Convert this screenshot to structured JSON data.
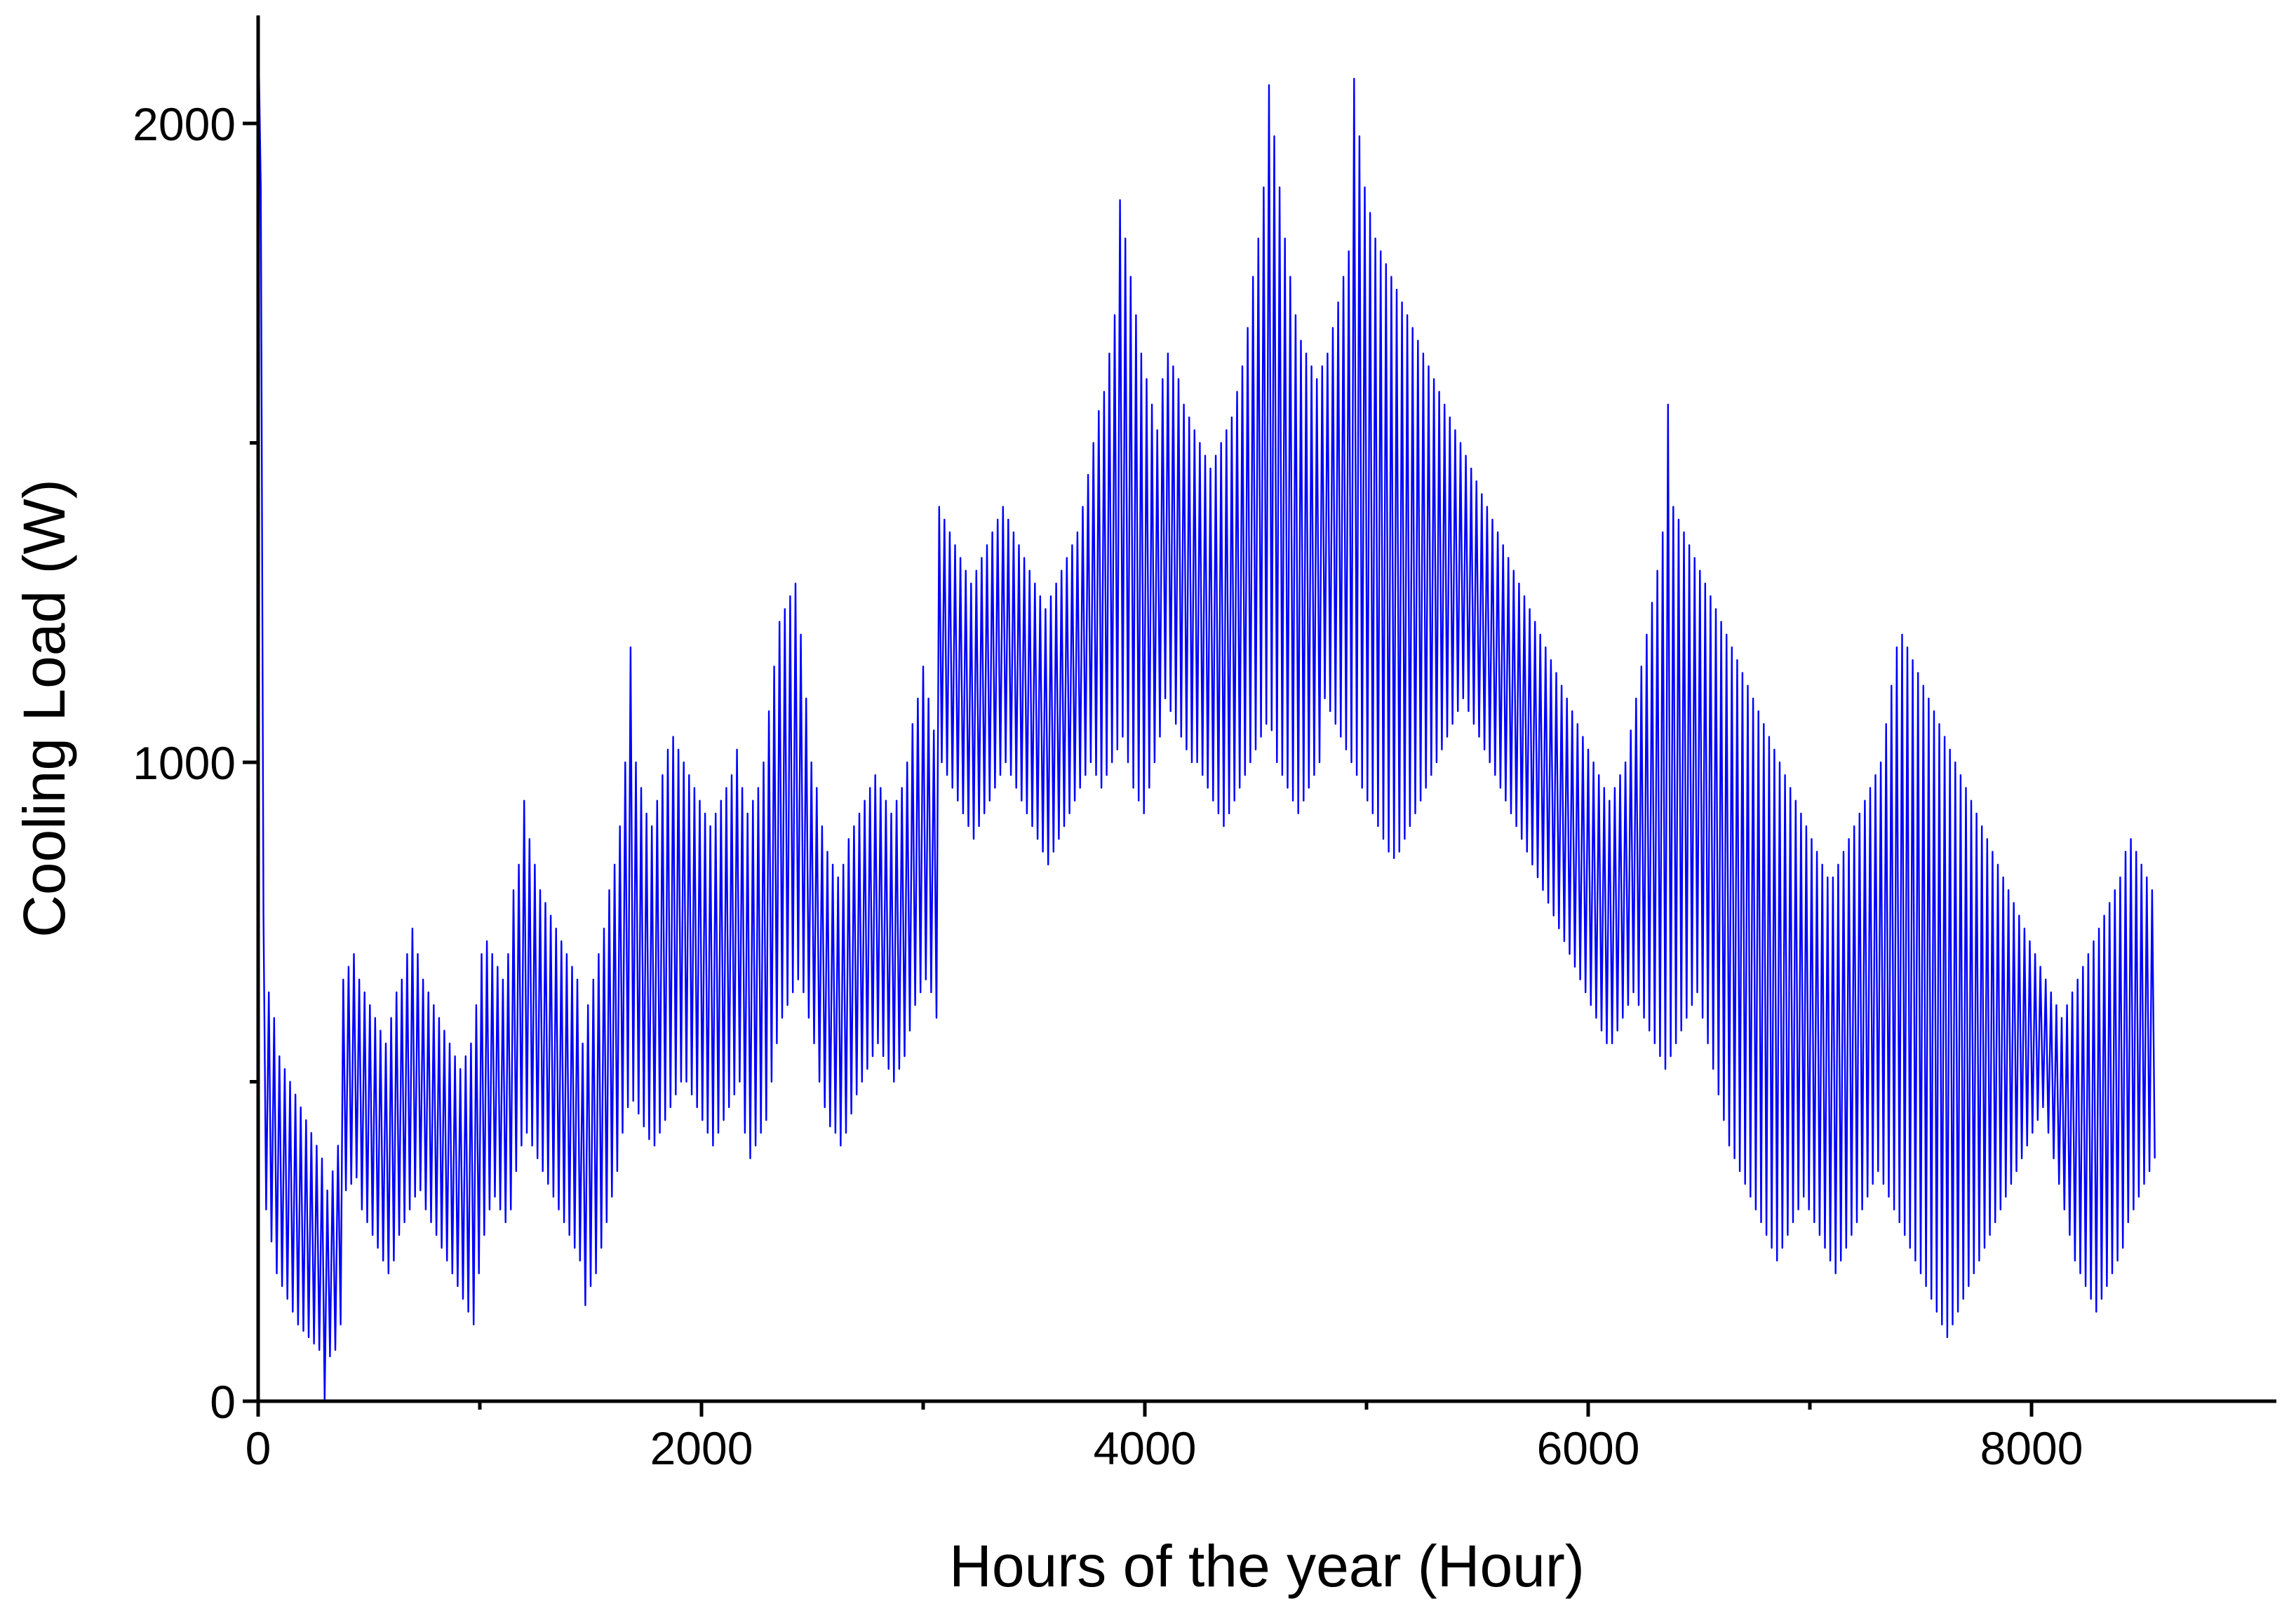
{
  "chart_data": {
    "type": "line",
    "title": "",
    "xlabel": "Hours of the year (Hour)",
    "ylabel": "Cooling Load (W)",
    "xlim": [
      0,
      8760
    ],
    "ylim": [
      0,
      2165
    ],
    "x_ticks": [
      0,
      2000,
      4000,
      6000,
      8000
    ],
    "x_tick_labels": [
      "0",
      "2000",
      "4000",
      "6000",
      "8000"
    ],
    "x_minor_ticks": [
      1000,
      3000,
      5000,
      7000
    ],
    "y_ticks": [
      0,
      1000,
      2000
    ],
    "y_tick_labels": [
      "0",
      "1000",
      "2000"
    ],
    "y_minor_ticks": [
      500,
      1500
    ],
    "grid": false,
    "legend": "none",
    "line_color": "#0000ff",
    "x_step_hours": 24,
    "series": [
      {
        "name": "",
        "start_hour": 0,
        "daily_min": [
          1900,
          300,
          250,
          200,
          180,
          160,
          140,
          120,
          110,
          100,
          90,
          80,
          0,
          70,
          80,
          120,
          330,
          340,
          350,
          300,
          280,
          260,
          240,
          220,
          200,
          220,
          260,
          280,
          300,
          320,
          330,
          300,
          280,
          260,
          240,
          220,
          200,
          180,
          160,
          140,
          120,
          200,
          260,
          300,
          320,
          300,
          280,
          300,
          360,
          400,
          420,
          400,
          380,
          360,
          340,
          320,
          300,
          280,
          260,
          240,
          220,
          150,
          180,
          200,
          240,
          280,
          320,
          360,
          420,
          460,
          470,
          450,
          430,
          410,
          400,
          420,
          440,
          460,
          480,
          500,
          500,
          480,
          460,
          440,
          420,
          400,
          420,
          440,
          460,
          480,
          500,
          420,
          380,
          400,
          420,
          440,
          500,
          560,
          600,
          620,
          640,
          660,
          640,
          600,
          560,
          500,
          460,
          430,
          420,
          400,
          420,
          450,
          480,
          500,
          520,
          540,
          560,
          540,
          520,
          500,
          520,
          540,
          580,
          620,
          640,
          660,
          640,
          600,
          1000,
          980,
          960,
          940,
          920,
          900,
          880,
          900,
          920,
          940,
          960,
          980,
          1000,
          980,
          960,
          940,
          920,
          900,
          880,
          860,
          840,
          860,
          880,
          900,
          920,
          940,
          960,
          980,
          1000,
          980,
          960,
          980,
          1000,
          1020,
          1040,
          1000,
          960,
          940,
          920,
          960,
          1000,
          1040,
          1100,
          1080,
          1060,
          1040,
          1020,
          1000,
          1000,
          980,
          960,
          940,
          920,
          900,
          920,
          940,
          960,
          980,
          1000,
          1020,
          1040,
          1060,
          1050,
          1000,
          980,
          960,
          940,
          920,
          940,
          960,
          980,
          1000,
          1100,
          1080,
          1060,
          1040,
          1020,
          1000,
          980,
          960,
          940,
          920,
          900,
          880,
          860,
          850,
          860,
          880,
          900,
          920,
          940,
          960,
          980,
          1000,
          1020,
          1040,
          1060,
          1080,
          1100,
          1080,
          1060,
          1040,
          1020,
          1000,
          980,
          960,
          940,
          920,
          900,
          880,
          860,
          840,
          820,
          800,
          780,
          760,
          740,
          720,
          700,
          680,
          660,
          640,
          620,
          600,
          580,
          560,
          560,
          580,
          600,
          620,
          640,
          620,
          600,
          580,
          560,
          540,
          520,
          540,
          560,
          580,
          600,
          620,
          640,
          600,
          560,
          520,
          480,
          440,
          400,
          380,
          360,
          340,
          320,
          300,
          280,
          260,
          240,
          220,
          240,
          260,
          280,
          300,
          320,
          300,
          280,
          260,
          240,
          220,
          200,
          220,
          240,
          260,
          280,
          300,
          320,
          340,
          360,
          340,
          320,
          300,
          280,
          260,
          240,
          220,
          200,
          180,
          160,
          140,
          120,
          100,
          120,
          140,
          160,
          180,
          200,
          220,
          240,
          260,
          280,
          300,
          320,
          340,
          360,
          380,
          400,
          420,
          440,
          460,
          420,
          380,
          340,
          300,
          260,
          220,
          200,
          180,
          160,
          140,
          160,
          180,
          200,
          220,
          240,
          280,
          300,
          320,
          340,
          360,
          380
        ],
        "daily_max": [
          2200,
          760,
          640,
          600,
          540,
          520,
          500,
          480,
          460,
          440,
          420,
          400,
          380,
          330,
          360,
          400,
          660,
          680,
          700,
          660,
          640,
          620,
          600,
          580,
          560,
          600,
          640,
          660,
          700,
          740,
          700,
          660,
          640,
          620,
          600,
          580,
          560,
          540,
          520,
          540,
          560,
          620,
          700,
          720,
          700,
          680,
          660,
          700,
          800,
          840,
          940,
          880,
          840,
          800,
          780,
          760,
          740,
          720,
          700,
          680,
          660,
          560,
          620,
          660,
          700,
          740,
          800,
          840,
          900,
          1000,
          1180,
          1000,
          960,
          920,
          900,
          940,
          980,
          1020,
          1040,
          1020,
          1000,
          980,
          960,
          940,
          920,
          900,
          920,
          940,
          960,
          980,
          1020,
          960,
          920,
          940,
          960,
          1000,
          1080,
          1150,
          1220,
          1240,
          1260,
          1280,
          1200,
          1100,
          1000,
          960,
          900,
          860,
          840,
          820,
          840,
          880,
          900,
          920,
          940,
          960,
          980,
          960,
          940,
          920,
          940,
          960,
          1000,
          1060,
          1100,
          1150,
          1100,
          1050,
          1400,
          1380,
          1360,
          1340,
          1320,
          1300,
          1280,
          1300,
          1320,
          1340,
          1360,
          1380,
          1400,
          1380,
          1360,
          1340,
          1320,
          1300,
          1280,
          1260,
          1240,
          1260,
          1280,
          1300,
          1320,
          1340,
          1360,
          1400,
          1450,
          1500,
          1550,
          1580,
          1640,
          1700,
          1880,
          1820,
          1760,
          1700,
          1640,
          1600,
          1560,
          1520,
          1600,
          1640,
          1620,
          1600,
          1560,
          1540,
          1520,
          1500,
          1480,
          1460,
          1480,
          1500,
          1520,
          1540,
          1580,
          1620,
          1680,
          1760,
          1820,
          1900,
          2060,
          1980,
          1900,
          1820,
          1760,
          1700,
          1660,
          1640,
          1620,
          1600,
          1620,
          1640,
          1680,
          1720,
          1760,
          1800,
          2070,
          1980,
          1900,
          1860,
          1820,
          1800,
          1780,
          1760,
          1740,
          1720,
          1700,
          1680,
          1660,
          1640,
          1620,
          1600,
          1580,
          1560,
          1540,
          1520,
          1500,
          1480,
          1460,
          1440,
          1420,
          1400,
          1380,
          1360,
          1340,
          1320,
          1300,
          1280,
          1260,
          1240,
          1220,
          1200,
          1180,
          1160,
          1140,
          1120,
          1100,
          1080,
          1060,
          1040,
          1020,
          1000,
          980,
          960,
          940,
          960,
          980,
          1000,
          1050,
          1100,
          1150,
          1200,
          1250,
          1300,
          1360,
          1560,
          1400,
          1380,
          1360,
          1340,
          1320,
          1300,
          1280,
          1260,
          1240,
          1220,
          1200,
          1180,
          1160,
          1140,
          1120,
          1100,
          1080,
          1060,
          1040,
          1020,
          1000,
          980,
          960,
          940,
          920,
          900,
          880,
          860,
          840,
          820,
          820,
          840,
          860,
          880,
          900,
          920,
          940,
          960,
          980,
          1000,
          1060,
          1120,
          1180,
          1200,
          1180,
          1160,
          1140,
          1120,
          1100,
          1080,
          1060,
          1040,
          1020,
          1000,
          980,
          960,
          940,
          920,
          900,
          880,
          860,
          840,
          820,
          800,
          780,
          760,
          740,
          720,
          700,
          680,
          660,
          640,
          620,
          600,
          620,
          640,
          660,
          680,
          700,
          720,
          740,
          760,
          780,
          800,
          820,
          860,
          880,
          860,
          840,
          820,
          800
        ]
      }
    ]
  }
}
